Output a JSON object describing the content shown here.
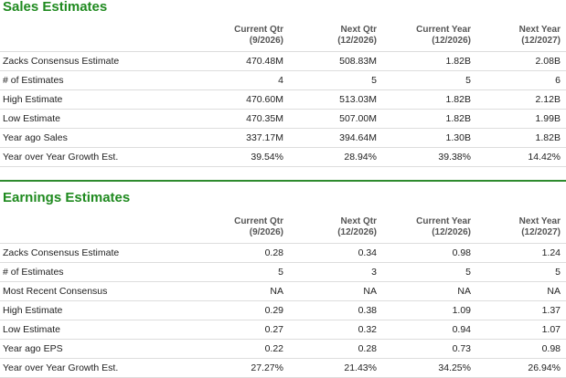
{
  "columns": [
    {
      "line1": "Current Qtr",
      "line2": "(9/2026)"
    },
    {
      "line1": "Next Qtr",
      "line2": "(12/2026)"
    },
    {
      "line1": "Current Year",
      "line2": "(12/2026)"
    },
    {
      "line1": "Next Year",
      "line2": "(12/2027)"
    }
  ],
  "earnings_columns": [
    {
      "line1": "Current Qtr",
      "line2": "(9/2026)"
    },
    {
      "line1": "Next Qtr",
      "line2": "(12/2026)"
    },
    {
      "line1": "Current Year",
      "line2": "(12/2026)"
    },
    {
      "line1": "Next Year",
      "line2": "(12/2027)"
    }
  ],
  "sales": {
    "title": "Sales Estimates",
    "rows": [
      {
        "label": "Zacks Consensus Estimate",
        "values": [
          "470.48M",
          "508.83M",
          "1.82B",
          "2.08B"
        ]
      },
      {
        "label": "# of Estimates",
        "values": [
          "4",
          "5",
          "5",
          "6"
        ]
      },
      {
        "label": "High Estimate",
        "values": [
          "470.60M",
          "513.03M",
          "1.82B",
          "2.12B"
        ]
      },
      {
        "label": "Low Estimate",
        "values": [
          "470.35M",
          "507.00M",
          "1.82B",
          "1.99B"
        ]
      },
      {
        "label": "Year ago Sales",
        "values": [
          "337.17M",
          "394.64M",
          "1.30B",
          "1.82B"
        ]
      },
      {
        "label": "Year over Year Growth Est.",
        "values": [
          "39.54%",
          "28.94%",
          "39.38%",
          "14.42%"
        ]
      }
    ]
  },
  "earnings": {
    "title": "Earnings Estimates",
    "rows": [
      {
        "label": "Zacks Consensus Estimate",
        "values": [
          "0.28",
          "0.34",
          "0.98",
          "1.24"
        ]
      },
      {
        "label": "# of Estimates",
        "values": [
          "5",
          "3",
          "5",
          "5"
        ]
      },
      {
        "label": "Most Recent Consensus",
        "values": [
          "NA",
          "NA",
          "NA",
          "NA"
        ]
      },
      {
        "label": "High Estimate",
        "values": [
          "0.29",
          "0.38",
          "1.09",
          "1.37"
        ]
      },
      {
        "label": "Low Estimate",
        "values": [
          "0.27",
          "0.32",
          "0.94",
          "1.07"
        ]
      },
      {
        "label": "Year ago EPS",
        "values": [
          "0.22",
          "0.28",
          "0.73",
          "0.98"
        ]
      },
      {
        "label": "Year over Year Growth Est.",
        "values": [
          "27.27%",
          "21.43%",
          "34.25%",
          "26.94%"
        ]
      }
    ]
  },
  "colors": {
    "title_green": "#1f8a1f",
    "divider_green": "#2e8b2e",
    "row_border": "#dddddd"
  }
}
